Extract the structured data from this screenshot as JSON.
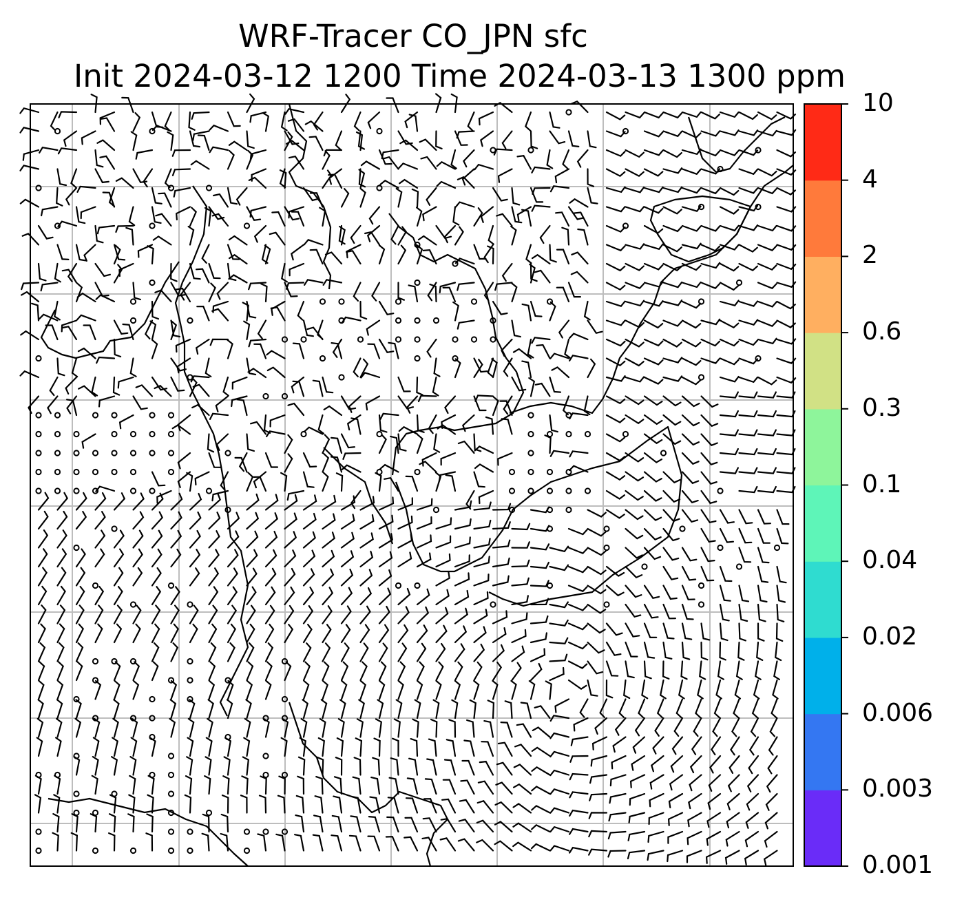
{
  "title": {
    "line1": "WRF-Tracer CO_JPN sfc",
    "line2": "Init 2024-03-12 1200 Time 2024-03-13 1300 ppm"
  },
  "colorbar": {
    "tick_labels": [
      "0.001",
      "0.003",
      "0.006",
      "0.02",
      "0.04",
      "0.1",
      "0.3",
      "0.6",
      "2",
      "4",
      "10"
    ],
    "colors": [
      "#6a2cf8",
      "#3477f2",
      "#00b0ea",
      "#2fdcd0",
      "#5ef5b8",
      "#8ef59b",
      "#d1e185",
      "#ffaf60",
      "#ff7a3b",
      "#ff2a16"
    ]
  },
  "map": {
    "grid_color": "#bdbdbd",
    "frame_color": "#000000",
    "tracer_field": "below 0.001 ppm everywhere (no shading visible)",
    "wind_barbs": "dense surface wind barbs with calm circles; cyclonic circulation over the lower-centre ocean"
  }
}
